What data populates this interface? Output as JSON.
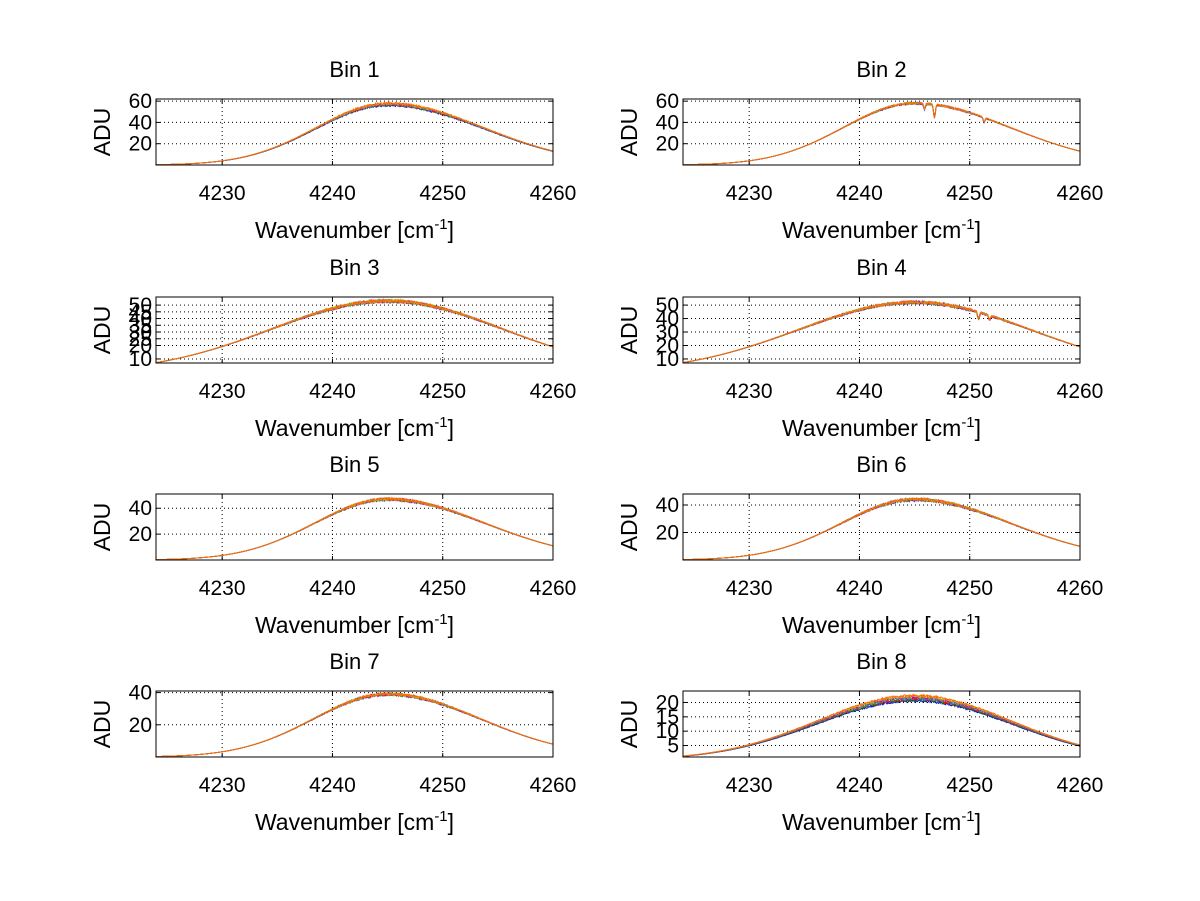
{
  "figure": {
    "x_axis_label": "Wavenumber [cm",
    "x_axis_label_exponent": "-1",
    "x_axis_label_close": "]",
    "y_axis_label": "ADU",
    "trace_colors": [
      "#0000ff",
      "#008000",
      "#ff0000",
      "#00bfbf",
      "#bf00bf",
      "#bfbf00",
      "#ff6600"
    ]
  },
  "chart_data": [
    {
      "type": "line",
      "title": "Bin 1",
      "xlabel": "Wavenumber [cm-1]",
      "ylabel": "ADU",
      "xlim": [
        4224,
        4260
      ],
      "ylim": [
        0,
        62
      ],
      "xticks": [
        4230,
        4240,
        4250,
        4260
      ],
      "yticks": [
        20,
        40,
        60
      ],
      "grid": true,
      "peak_wavenumber": 4245,
      "endpoints": [
        0,
        13
      ],
      "peak_value": 57,
      "noise": 1.0,
      "dips": [],
      "spread": 1.0
    },
    {
      "type": "line",
      "title": "Bin 2",
      "xlabel": "Wavenumber [cm-1]",
      "ylabel": "ADU",
      "xlim": [
        4224,
        4260
      ],
      "ylim": [
        0,
        62
      ],
      "xticks": [
        4230,
        4240,
        4250,
        4260
      ],
      "yticks": [
        20,
        40,
        60
      ],
      "grid": true,
      "peak_wavenumber": 4245,
      "endpoints": [
        0,
        13
      ],
      "peak_value": 58,
      "noise": 0.9,
      "dips": [
        {
          "x": 4246.8,
          "depth": 12
        },
        {
          "x": 4245.9,
          "depth": 5
        },
        {
          "x": 4251.3,
          "depth": 4
        }
      ],
      "spread": 0.2
    },
    {
      "type": "line",
      "title": "Bin 3",
      "xlabel": "Wavenumber [cm-1]",
      "ylabel": "ADU",
      "xlim": [
        4224,
        4260
      ],
      "ylim": [
        7,
        56
      ],
      "xticks": [
        4230,
        4240,
        4250,
        4260
      ],
      "yticks": [
        10,
        20,
        25,
        30,
        35,
        40,
        45,
        50
      ],
      "grid": true,
      "peak_wavenumber": 4245,
      "endpoints": [
        7,
        19
      ],
      "peak_value": 53,
      "noise": 1.1,
      "dips": [],
      "spread": 0.2
    },
    {
      "type": "line",
      "title": "Bin 4",
      "xlabel": "Wavenumber [cm-1]",
      "ylabel": "ADU",
      "xlim": [
        4224,
        4260
      ],
      "ylim": [
        7,
        56
      ],
      "xticks": [
        4230,
        4240,
        4250,
        4260
      ],
      "yticks": [
        10,
        20,
        30,
        40,
        50
      ],
      "grid": true,
      "peak_wavenumber": 4245,
      "endpoints": [
        7,
        19
      ],
      "peak_value": 52,
      "noise": 1.0,
      "dips": [
        {
          "x": 4250.8,
          "depth": 5
        },
        {
          "x": 4251.8,
          "depth": 3
        }
      ],
      "spread": 0.2
    },
    {
      "type": "line",
      "title": "Bin 5",
      "xlabel": "Wavenumber [cm-1]",
      "ylabel": "ADU",
      "xlim": [
        4224,
        4260
      ],
      "ylim": [
        0,
        51
      ],
      "xticks": [
        4230,
        4240,
        4250,
        4260
      ],
      "yticks": [
        20,
        40
      ],
      "grid": true,
      "peak_wavenumber": 4245,
      "endpoints": [
        0,
        11
      ],
      "peak_value": 47,
      "noise": 1.0,
      "dips": [],
      "spread": 0.2
    },
    {
      "type": "line",
      "title": "Bin 6",
      "xlabel": "Wavenumber [cm-1]",
      "ylabel": "ADU",
      "xlim": [
        4224,
        4260
      ],
      "ylim": [
        0,
        48
      ],
      "xticks": [
        4230,
        4240,
        4250,
        4260
      ],
      "yticks": [
        20,
        40
      ],
      "grid": true,
      "peak_wavenumber": 4245,
      "endpoints": [
        0,
        10
      ],
      "peak_value": 44,
      "noise": 1.0,
      "dips": [],
      "spread": 0.2
    },
    {
      "type": "line",
      "title": "Bin 7",
      "xlabel": "Wavenumber [cm-1]",
      "ylabel": "ADU",
      "xlim": [
        4224,
        4260
      ],
      "ylim": [
        0,
        41
      ],
      "xticks": [
        4230,
        4240,
        4250,
        4260
      ],
      "yticks": [
        20,
        40
      ],
      "grid": true,
      "peak_wavenumber": 4245,
      "endpoints": [
        0,
        8
      ],
      "peak_value": 39,
      "noise": 0.8,
      "dips": [],
      "spread": 0.2
    },
    {
      "type": "line",
      "title": "Bin 8",
      "xlabel": "Wavenumber [cm-1]",
      "ylabel": "ADU",
      "xlim": [
        4224,
        4260
      ],
      "ylim": [
        1,
        24
      ],
      "xticks": [
        4230,
        4240,
        4250,
        4260
      ],
      "yticks": [
        5,
        10,
        15,
        20
      ],
      "grid": true,
      "peak_wavenumber": 4245,
      "endpoints": [
        1,
        5
      ],
      "peak_value": 21.5,
      "noise": 0.4,
      "dips": [],
      "spread": 0.9
    }
  ]
}
